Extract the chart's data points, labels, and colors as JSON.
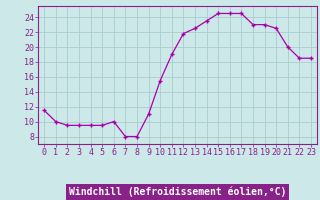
{
  "x": [
    0,
    1,
    2,
    3,
    4,
    5,
    6,
    7,
    8,
    9,
    10,
    11,
    12,
    13,
    14,
    15,
    16,
    17,
    18,
    19,
    20,
    21,
    22,
    23
  ],
  "y": [
    11.5,
    10.0,
    9.5,
    9.5,
    9.5,
    9.5,
    10.0,
    8.0,
    8.0,
    11.0,
    15.5,
    19.0,
    21.8,
    22.5,
    23.5,
    24.5,
    24.5,
    24.5,
    23.0,
    23.0,
    22.5,
    20.0,
    18.5,
    18.5
  ],
  "line_color": "#aa00aa",
  "marker": "+",
  "marker_size": 3,
  "marker_lw": 1.0,
  "bg_color": "#cce8e8",
  "grid_color": "#aacccc",
  "xlabel": "Windchill (Refroidissement éolien,°C)",
  "xlabel_bg": "#882288",
  "xlabel_color": "#ffffff",
  "tick_color": "#882288",
  "yticks": [
    8,
    10,
    12,
    14,
    16,
    18,
    20,
    22,
    24
  ],
  "xticks": [
    0,
    1,
    2,
    3,
    4,
    5,
    6,
    7,
    8,
    9,
    10,
    11,
    12,
    13,
    14,
    15,
    16,
    17,
    18,
    19,
    20,
    21,
    22,
    23
  ],
  "ylim": [
    7.0,
    25.5
  ],
  "xlim": [
    -0.5,
    23.5
  ],
  "tick_fontsize": 6,
  "xlabel_fontsize": 7
}
